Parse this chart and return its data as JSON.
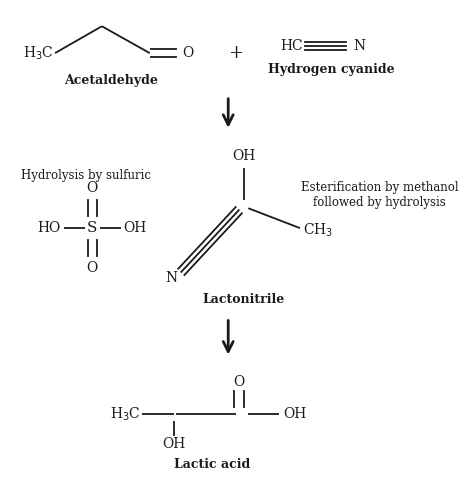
{
  "background_color": "#ffffff",
  "text_color": "#1a1a1a",
  "line_color": "#1a1a1a",
  "acetaldehyde_label": "Acetaldehyde",
  "hcn_label": "Hydrogen cyanide",
  "lactonitrile_label": "Lactonitrile",
  "lactic_acid_label": "Lactic acid",
  "hydrolysis_text": "Hydrolysis by sulfuric",
  "esterification_text": "Esterification by methanol\nfollowed by hydrolysis",
  "plus_sign": "+",
  "figsize": [
    4.74,
    4.97
  ],
  "dpi": 100
}
